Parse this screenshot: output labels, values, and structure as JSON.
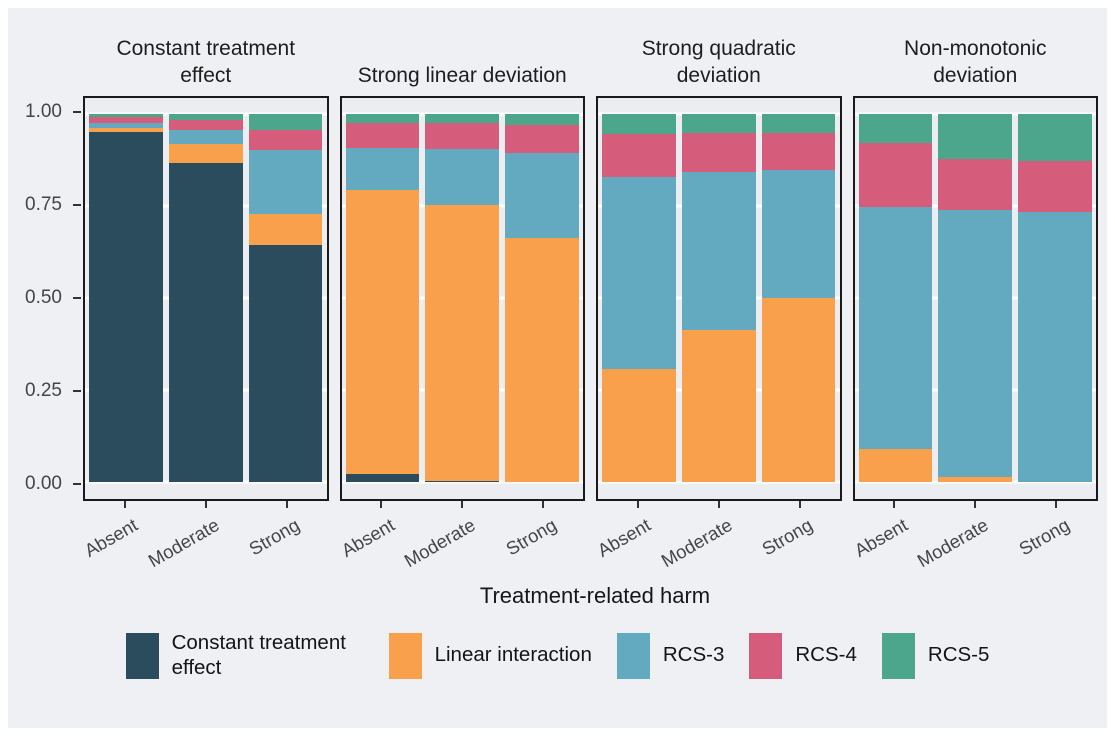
{
  "figure": {
    "x_axis_title": "Treatment-related harm"
  },
  "chart_data": {
    "type": "stacked-bar",
    "title": "",
    "xlabel": "Treatment-related harm",
    "ylabel": "",
    "ylim": [
      0,
      1
    ],
    "grid": "major-horizontal-white",
    "legend_position": "bottom",
    "yticks": [
      {
        "label": "1.00",
        "value": 1.0
      },
      {
        "label": "0.75",
        "value": 0.75
      },
      {
        "label": "0.50",
        "value": 0.5
      },
      {
        "label": "0.25",
        "value": 0.25
      },
      {
        "label": "0.00",
        "value": 0.0
      }
    ],
    "categories": [
      "Absent",
      "Moderate",
      "Strong"
    ],
    "series_meta": [
      {
        "name": "Constant treatment effect",
        "color": "#2b4c5d"
      },
      {
        "name": "Linear interaction",
        "color": "#f9a04c"
      },
      {
        "name": "RCS-3",
        "color": "#63a9bf"
      },
      {
        "name": "RCS-4",
        "color": "#d65c7c"
      },
      {
        "name": "RCS-5",
        "color": "#4ca68c"
      }
    ],
    "facets": [
      {
        "title": "Constant treatment effect",
        "series": [
          {
            "name": "Constant treatment effect",
            "values": [
              0.952,
              0.868,
              0.643
            ]
          },
          {
            "name": "Linear interaction",
            "values": [
              0.011,
              0.051,
              0.086
            ]
          },
          {
            "name": "RCS-3",
            "values": [
              0.013,
              0.038,
              0.173
            ]
          },
          {
            "name": "RCS-4",
            "values": [
              0.017,
              0.028,
              0.055
            ]
          },
          {
            "name": "RCS-5",
            "values": [
              0.007,
              0.015,
              0.043
            ]
          }
        ]
      },
      {
        "title": "Strong linear deviation",
        "series": [
          {
            "name": "Constant treatment effect",
            "values": [
              0.022,
              0.003,
              0.0
            ]
          },
          {
            "name": "Linear interaction",
            "values": [
              0.772,
              0.75,
              0.663
            ]
          },
          {
            "name": "RCS-3",
            "values": [
              0.114,
              0.151,
              0.232
            ]
          },
          {
            "name": "RCS-4",
            "values": [
              0.067,
              0.071,
              0.074
            ]
          },
          {
            "name": "RCS-5",
            "values": [
              0.025,
              0.025,
              0.031
            ]
          }
        ]
      },
      {
        "title": "Strong quadratic deviation",
        "series": [
          {
            "name": "Constant treatment effect",
            "values": [
              0.0,
              0.0,
              0.0
            ]
          },
          {
            "name": "Linear interaction",
            "values": [
              0.308,
              0.414,
              0.501
            ]
          },
          {
            "name": "RCS-3",
            "values": [
              0.521,
              0.428,
              0.347
            ]
          },
          {
            "name": "RCS-4",
            "values": [
              0.116,
              0.106,
              0.1
            ]
          },
          {
            "name": "RCS-5",
            "values": [
              0.055,
              0.052,
              0.052
            ]
          }
        ]
      },
      {
        "title": "Non-monotonic deviation",
        "series": [
          {
            "name": "Constant treatment effect",
            "values": [
              0.0,
              0.0,
              0.0
            ]
          },
          {
            "name": "Linear interaction",
            "values": [
              0.091,
              0.013,
              0.0
            ]
          },
          {
            "name": "RCS-3",
            "values": [
              0.656,
              0.727,
              0.735
            ]
          },
          {
            "name": "RCS-4",
            "values": [
              0.173,
              0.138,
              0.138
            ]
          },
          {
            "name": "RCS-5",
            "values": [
              0.08,
              0.122,
              0.127
            ]
          }
        ]
      }
    ],
    "bar_center_percents": [
      17,
      50,
      83
    ],
    "colors": {
      "figure_background": "#eff0f4",
      "panel_background": "#ecedf1",
      "gridline": "#ffffff",
      "panel_border": "#1a1a1a",
      "axis_text": "#454545",
      "title_text": "#1d1d1d"
    }
  }
}
